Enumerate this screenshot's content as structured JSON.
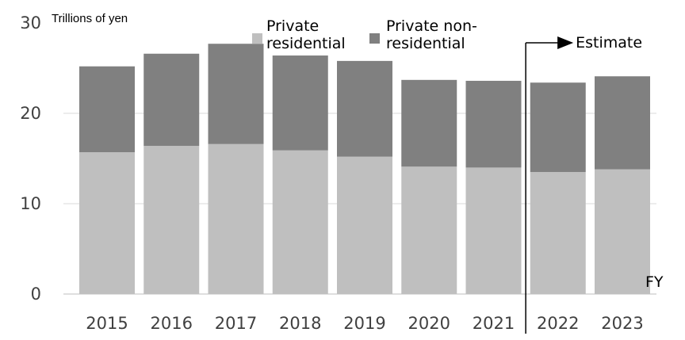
{
  "chart_data": {
    "type": "bar",
    "stacked": true,
    "categories": [
      "2015",
      "2016",
      "2017",
      "2018",
      "2019",
      "2020",
      "2021",
      "2022",
      "2023"
    ],
    "series": [
      {
        "name": "Private residential",
        "values": [
          15.7,
          16.4,
          16.6,
          15.9,
          15.2,
          14.1,
          14.0,
          13.5,
          13.8
        ],
        "color": "#bfbfbf"
      },
      {
        "name": "Private non-residential",
        "values": [
          9.5,
          10.2,
          11.1,
          10.5,
          10.6,
          9.6,
          9.6,
          9.9,
          10.3
        ],
        "color": "#808080"
      }
    ],
    "ylabel": "Trillions of yen",
    "xlabel": "FY",
    "ylim": [
      0,
      30
    ],
    "yticks": [
      0,
      10,
      20,
      30
    ],
    "grid": true,
    "legend_position": "top",
    "annotation": {
      "text": "Estimate",
      "from_category_index": 7
    }
  }
}
